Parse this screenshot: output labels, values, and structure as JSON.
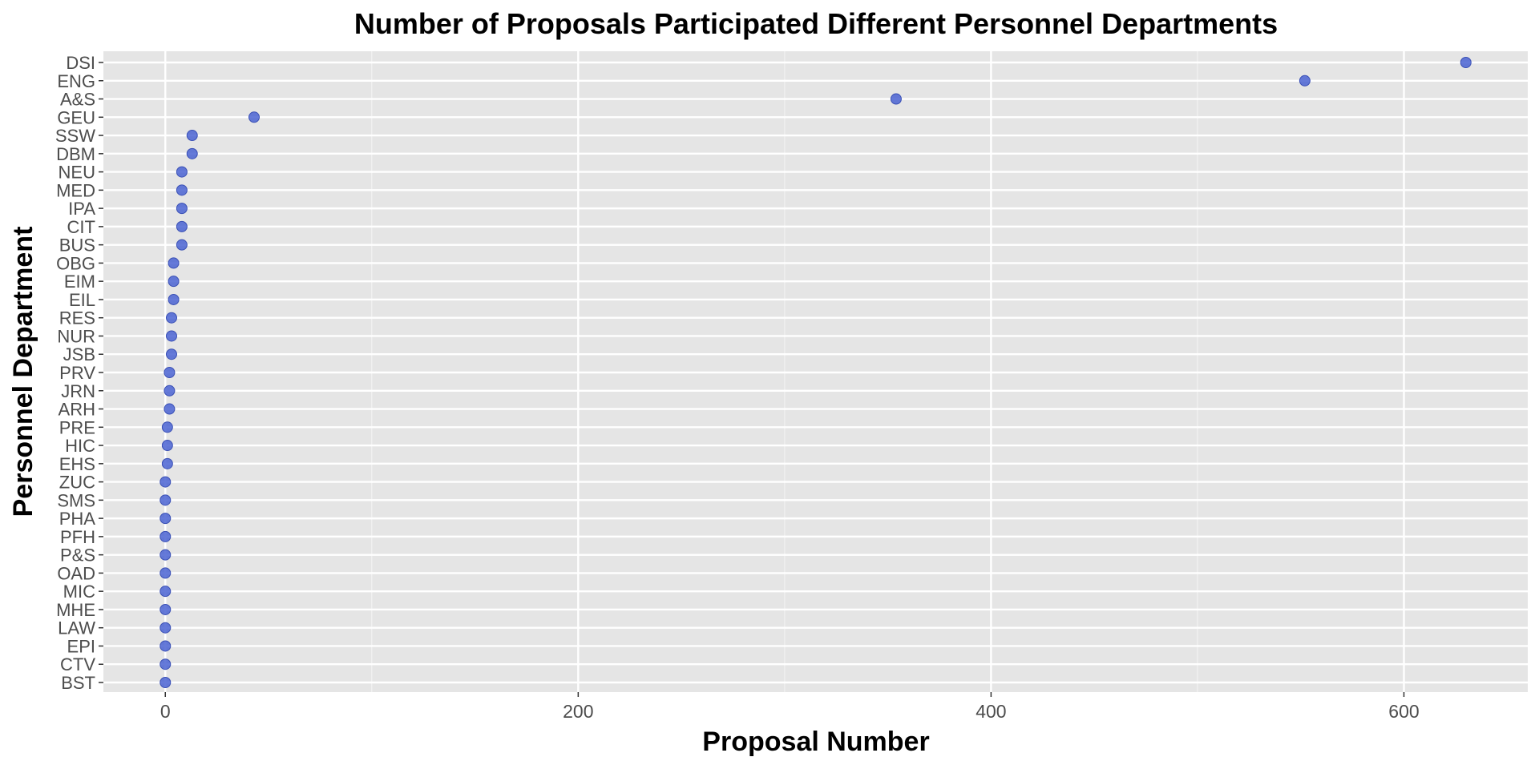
{
  "chart_data": {
    "type": "scatter",
    "title": "Number of Proposals Participated Different Personnel Departments",
    "xlabel": "Proposal Number",
    "ylabel": "Personnel Department",
    "xlim": [
      -30,
      660
    ],
    "xticks": [
      0,
      200,
      400,
      600
    ],
    "x_minor_ticks": [
      100,
      300,
      500
    ],
    "grid": true,
    "point_color": "#4a63d2",
    "panel_color": "#e5e5e5",
    "categories": [
      "DSI",
      "ENG",
      "A&S",
      "GEU",
      "SSW",
      "DBM",
      "NEU",
      "MED",
      "IPA",
      "CIT",
      "BUS",
      "OBG",
      "EIM",
      "EIL",
      "RES",
      "NUR",
      "JSB",
      "PRV",
      "JRN",
      "ARH",
      "PRE",
      "HIC",
      "EHS",
      "ZUC",
      "SMS",
      "PHA",
      "PFH",
      "P&S",
      "OAD",
      "MIC",
      "MHE",
      "LAW",
      "EPI",
      "CTV",
      "BST"
    ],
    "values": [
      630,
      552,
      354,
      43,
      13,
      13,
      8,
      8,
      8,
      8,
      8,
      4,
      4,
      4,
      3,
      3,
      3,
      2,
      2,
      2,
      1,
      1,
      1,
      0,
      0,
      0,
      0,
      0,
      0,
      0,
      0,
      0,
      0,
      0,
      0
    ]
  }
}
